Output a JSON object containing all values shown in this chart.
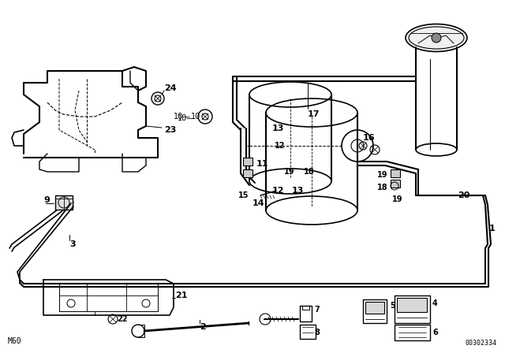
{
  "bg_color": "#ffffff",
  "line_color": "#000000",
  "fig_width": 6.4,
  "fig_height": 4.48,
  "dpi": 100,
  "footnote_left": "M60",
  "footnote_right": "00302334"
}
